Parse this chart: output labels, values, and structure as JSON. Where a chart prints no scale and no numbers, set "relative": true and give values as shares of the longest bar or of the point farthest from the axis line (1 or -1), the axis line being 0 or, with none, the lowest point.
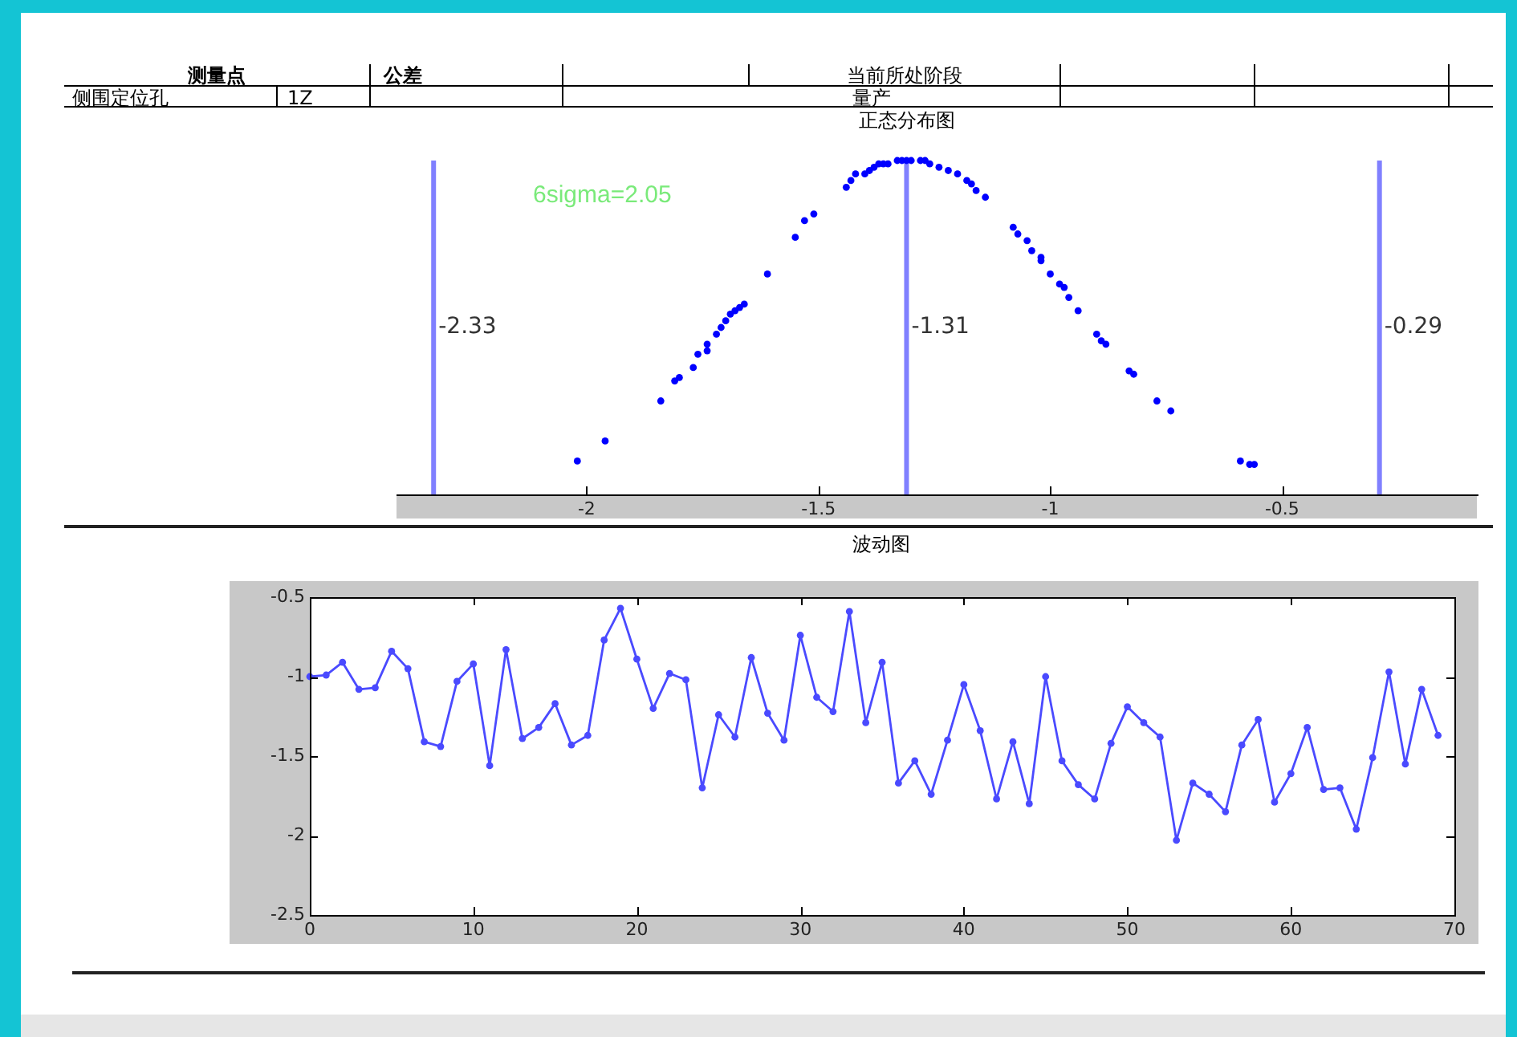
{
  "chart_data": [
    {
      "type": "other",
      "annotations": [
        "测量点",
        "公差",
        "当前所处阶段",
        "侧围定位孔",
        "1Z",
        "量产"
      ]
    },
    {
      "type": "scatter",
      "title": "正态分布图",
      "relative": true,
      "color": "#0000ff",
      "marker": "circle",
      "x": [
        -2.02,
        -1.96,
        -1.84,
        -1.81,
        -1.8,
        -1.77,
        -1.76,
        -1.74,
        -1.74,
        -1.72,
        -1.71,
        -1.7,
        -1.69,
        -1.68,
        -1.67,
        -1.66,
        -1.61,
        -1.55,
        -1.53,
        -1.51,
        -1.44,
        -1.43,
        -1.42,
        -1.4,
        -1.39,
        -1.38,
        -1.37,
        -1.36,
        -1.35,
        -1.33,
        -1.32,
        -1.31,
        -1.3,
        -1.28,
        -1.27,
        -1.26,
        -1.24,
        -1.22,
        -1.2,
        -1.18,
        -1.17,
        -1.16,
        -1.14,
        -1.08,
        -1.07,
        -1.05,
        -1.04,
        -1.02,
        -1.02,
        -1.0,
        -0.98,
        -0.97,
        -0.96,
        -0.94,
        -0.9,
        -0.89,
        -0.88,
        -0.83,
        -0.82,
        -0.77,
        -0.74,
        -0.59,
        -0.57,
        -0.56
      ],
      "values": [
        0.1,
        0.16,
        0.28,
        0.34,
        0.35,
        0.38,
        0.42,
        0.43,
        0.45,
        0.48,
        0.5,
        0.52,
        0.54,
        0.55,
        0.56,
        0.57,
        0.66,
        0.77,
        0.82,
        0.84,
        0.92,
        0.94,
        0.96,
        0.96,
        0.97,
        0.98,
        0.99,
        0.99,
        0.99,
        1.0,
        1.0,
        1.0,
        1.0,
        1.0,
        1.0,
        0.99,
        0.98,
        0.97,
        0.96,
        0.94,
        0.93,
        0.91,
        0.89,
        0.8,
        0.78,
        0.76,
        0.73,
        0.71,
        0.7,
        0.66,
        0.63,
        0.62,
        0.59,
        0.55,
        0.48,
        0.46,
        0.45,
        0.37,
        0.36,
        0.28,
        0.25,
        0.1,
        0.09,
        0.09
      ],
      "xlim": [
        -2.41,
        -0.08
      ],
      "xticks": [
        -2,
        -1.5,
        -1,
        -0.5
      ],
      "ref_lines": [
        {
          "axis": "x",
          "value": -2.33,
          "label": "-2.33",
          "color": "#8080ff"
        },
        {
          "axis": "x",
          "value": -1.31,
          "label": "-1.31",
          "color": "#8080ff"
        },
        {
          "axis": "x",
          "value": -0.29,
          "label": "-0.29",
          "color": "#8080ff"
        }
      ],
      "annotations": [
        "6sigma=2.05"
      ]
    },
    {
      "type": "line",
      "title": "波动图",
      "color": "#4a4aff",
      "marker": "circle",
      "x": [
        0,
        1,
        2,
        3,
        4,
        5,
        6,
        7,
        8,
        9,
        10,
        11,
        12,
        13,
        14,
        15,
        16,
        17,
        18,
        19,
        20,
        21,
        22,
        23,
        24,
        25,
        26,
        27,
        28,
        29,
        30,
        31,
        32,
        33,
        34,
        35,
        36,
        37,
        38,
        39,
        40,
        41,
        42,
        43,
        44,
        45,
        46,
        47,
        48,
        49,
        50,
        51,
        52,
        53,
        54,
        55,
        56,
        57,
        58,
        59,
        60,
        61,
        62,
        63,
        64,
        65,
        66,
        67,
        68,
        69
      ],
      "values": [
        -1.0,
        -0.99,
        -0.91,
        -1.08,
        -1.07,
        -0.84,
        -0.95,
        -1.41,
        -1.44,
        -1.03,
        -0.92,
        -1.56,
        -0.83,
        -1.39,
        -1.32,
        -1.17,
        -1.43,
        -1.37,
        -0.77,
        -0.57,
        -0.89,
        -1.2,
        -0.98,
        -1.02,
        -1.7,
        -1.24,
        -1.38,
        -0.88,
        -1.23,
        -1.4,
        -0.74,
        -1.13,
        -1.22,
        -0.59,
        -1.29,
        -0.91,
        -1.67,
        -1.53,
        -1.74,
        -1.4,
        -1.05,
        -1.34,
        -1.77,
        -1.41,
        -1.8,
        -1.0,
        -1.53,
        -1.68,
        -1.77,
        -1.42,
        -1.19,
        -1.29,
        -1.38,
        -2.03,
        -1.67,
        -1.74,
        -1.85,
        -1.43,
        -1.27,
        -1.79,
        -1.61,
        -1.32,
        -1.71,
        -1.7,
        -1.96,
        -1.51,
        -0.97,
        -1.55,
        -1.08,
        -1.37
      ],
      "xlim": [
        0,
        70
      ],
      "xticks": [
        0,
        10,
        20,
        30,
        40,
        50,
        60,
        70
      ],
      "ylim": [
        -2.5,
        -0.5
      ],
      "yticks": [
        -2.5,
        -2,
        -1.5,
        -1,
        -0.5
      ]
    }
  ]
}
